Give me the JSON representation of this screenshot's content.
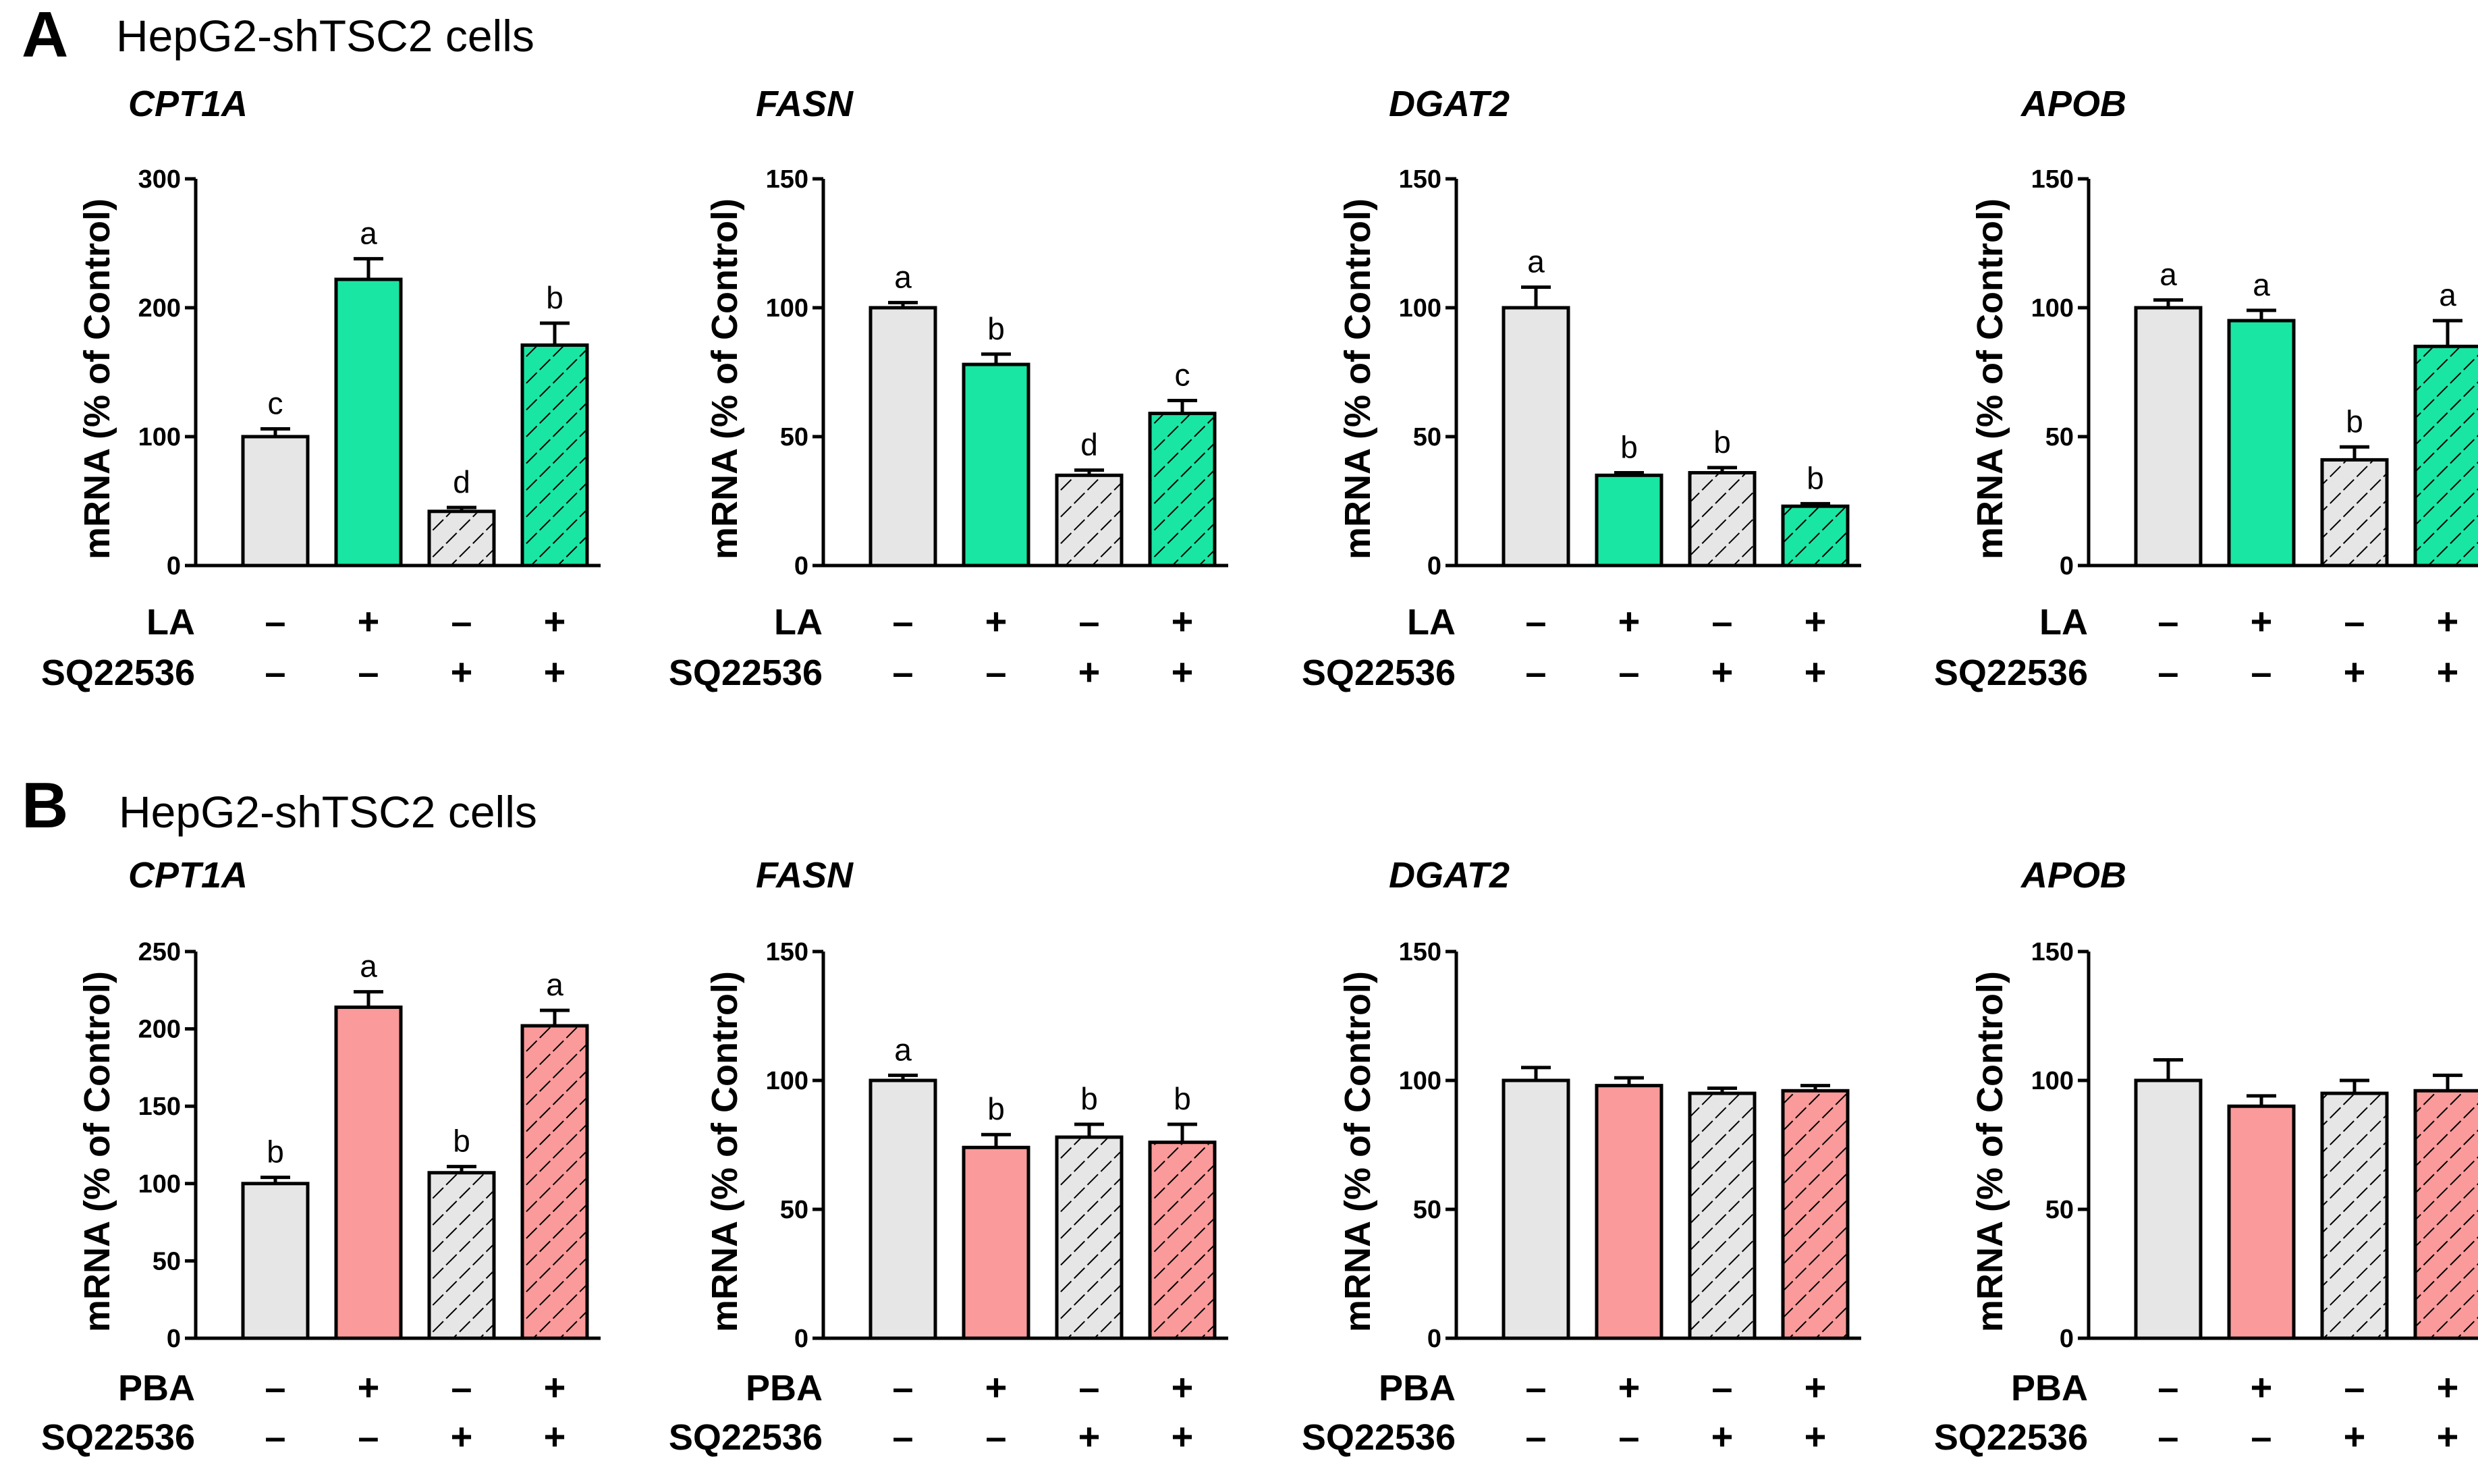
{
  "colors": {
    "control": "#e6e6e6",
    "la": "#19e6a2",
    "pba": "#fa9a9a",
    "outline": "#000000"
  },
  "panels": [
    {
      "letter": "A",
      "title": "HepG2-shTSC2 cells",
      "treatment_color": "la",
      "treatment_label": "LA",
      "second_label": "SQ22536",
      "rows": [
        {
          "label": "LA",
          "signs": [
            "–",
            "+",
            "–",
            "+"
          ]
        },
        {
          "label": "SQ22536",
          "signs": [
            "–",
            "–",
            "+",
            "+"
          ]
        }
      ]
    },
    {
      "letter": "B",
      "title": "HepG2-shTSC2 cells",
      "treatment_color": "pba",
      "treatment_label": "PBA",
      "second_label": "SQ22536",
      "rows": [
        {
          "label": "PBA",
          "signs": [
            "–",
            "+",
            "–",
            "+"
          ]
        },
        {
          "label": "SQ22536",
          "signs": [
            "–",
            "–",
            "+",
            "+"
          ]
        }
      ]
    }
  ],
  "chart_data": [
    {
      "panel": "A",
      "type": "bar",
      "title": "CPT1A",
      "ylabel": "mRNA (% of Control)",
      "ylim": [
        0,
        300
      ],
      "yticks": [
        0,
        100,
        200,
        300
      ],
      "values": [
        100,
        222,
        42,
        171
      ],
      "errors": [
        6,
        16,
        3,
        17
      ],
      "letters": [
        "c",
        "a",
        "d",
        "b"
      ],
      "hatched": [
        false,
        false,
        true,
        true
      ]
    },
    {
      "panel": "A",
      "type": "bar",
      "title": "FASN",
      "ylabel": "mRNA (% of Control)",
      "ylim": [
        0,
        150
      ],
      "yticks": [
        0,
        50,
        100,
        150
      ],
      "values": [
        100,
        78,
        35,
        59
      ],
      "errors": [
        2,
        4,
        2,
        5
      ],
      "letters": [
        "a",
        "b",
        "d",
        "c"
      ],
      "hatched": [
        false,
        false,
        true,
        true
      ]
    },
    {
      "panel": "A",
      "type": "bar",
      "title": "DGAT2",
      "ylabel": "mRNA (% of Control)",
      "ylim": [
        0,
        150
      ],
      "yticks": [
        0,
        50,
        100,
        150
      ],
      "values": [
        100,
        35,
        36,
        23
      ],
      "errors": [
        8,
        1,
        2,
        1
      ],
      "letters": [
        "a",
        "b",
        "b",
        "b"
      ],
      "hatched": [
        false,
        false,
        true,
        true
      ]
    },
    {
      "panel": "A",
      "type": "bar",
      "title": "APOB",
      "ylabel": "mRNA (% of Control)",
      "ylim": [
        0,
        150
      ],
      "yticks": [
        0,
        50,
        100,
        150
      ],
      "values": [
        100,
        95,
        41,
        85
      ],
      "errors": [
        3,
        4,
        5,
        10
      ],
      "letters": [
        "a",
        "a",
        "b",
        "a"
      ],
      "hatched": [
        false,
        false,
        true,
        true
      ]
    },
    {
      "panel": "B",
      "type": "bar",
      "title": "CPT1A",
      "ylabel": "mRNA (% of Control)",
      "ylim": [
        0,
        250
      ],
      "yticks": [
        0,
        50,
        100,
        150,
        200,
        250
      ],
      "values": [
        100,
        214,
        107,
        202
      ],
      "errors": [
        4,
        10,
        4,
        10
      ],
      "letters": [
        "b",
        "a",
        "b",
        "a"
      ],
      "hatched": [
        false,
        false,
        true,
        true
      ]
    },
    {
      "panel": "B",
      "type": "bar",
      "title": "FASN",
      "ylabel": "mRNA (% of Control)",
      "ylim": [
        0,
        150
      ],
      "yticks": [
        0,
        50,
        100,
        150
      ],
      "values": [
        100,
        74,
        78,
        76
      ],
      "errors": [
        2,
        5,
        5,
        7
      ],
      "letters": [
        "a",
        "b",
        "b",
        "b"
      ],
      "hatched": [
        false,
        false,
        true,
        true
      ]
    },
    {
      "panel": "B",
      "type": "bar",
      "title": "DGAT2",
      "ylabel": "mRNA (% of Control)",
      "ylim": [
        0,
        150
      ],
      "yticks": [
        0,
        50,
        100,
        150
      ],
      "values": [
        100,
        98,
        95,
        96
      ],
      "errors": [
        5,
        3,
        2,
        2
      ],
      "letters": [
        "",
        "",
        "",
        ""
      ],
      "hatched": [
        false,
        false,
        true,
        true
      ]
    },
    {
      "panel": "B",
      "type": "bar",
      "title": "APOB",
      "ylabel": "mRNA (% of Control)",
      "ylim": [
        0,
        150
      ],
      "yticks": [
        0,
        50,
        100,
        150
      ],
      "values": [
        100,
        90,
        95,
        96
      ],
      "errors": [
        8,
        4,
        5,
        6
      ],
      "letters": [
        "",
        "",
        "",
        ""
      ],
      "hatched": [
        false,
        false,
        true,
        true
      ]
    }
  ]
}
